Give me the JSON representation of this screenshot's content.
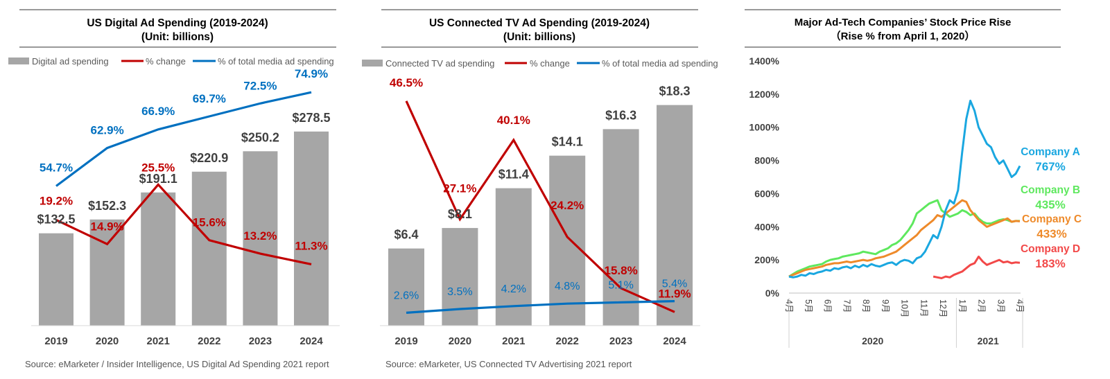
{
  "colors": {
    "bar": "#a6a6a6",
    "red": "#c00000",
    "blue": "#0070c0",
    "company_a": "#1aa7e0",
    "company_b": "#5ee85e",
    "company_c": "#ee8a2a",
    "company_d": "#f24848"
  },
  "chart_data": [
    {
      "type": "bar",
      "title": "US Digital Ad Spending (2019-2024)",
      "subtitle": "(Unit: billions)",
      "legend": [
        "Digital ad spending",
        "% change",
        "% of total media ad spending"
      ],
      "legend_placement": "top",
      "categories": [
        "2019",
        "2020",
        "2021",
        "2022",
        "2023",
        "2024"
      ],
      "series": [
        {
          "name": "Digital ad spending",
          "kind": "bar",
          "values": [
            132.5,
            152.3,
            191.1,
            220.9,
            250.2,
            278.5
          ],
          "labels": [
            "$132.5",
            "$152.3",
            "$191.1",
            "$220.9",
            "$250.2",
            "$278.5"
          ]
        },
        {
          "name": "% change",
          "kind": "line",
          "values": [
            19.2,
            14.9,
            25.5,
            15.6,
            13.2,
            11.3
          ],
          "labels": [
            "19.2%",
            "14.9%",
            "25.5%",
            "15.6%",
            "13.2%",
            "11.3%"
          ]
        },
        {
          "name": "% of total media ad spending",
          "kind": "line",
          "values": [
            54.7,
            62.9,
            66.9,
            69.7,
            72.5,
            74.9
          ],
          "labels": [
            "54.7%",
            "62.9%",
            "66.9%",
            "69.7%",
            "72.5%",
            "74.9%"
          ]
        }
      ],
      "source": "Source: eMarketer / Insider Intelligence, US Digital Ad Spending 2021 report"
    },
    {
      "type": "bar",
      "title": "US Connected TV Ad Spending (2019-2024)",
      "subtitle": "(Unit: billions)",
      "legend": [
        "Connected TV ad spending",
        "% change",
        "% of total media ad spending"
      ],
      "legend_placement": "top",
      "categories": [
        "2019",
        "2020",
        "2021",
        "2022",
        "2023",
        "2024"
      ],
      "series": [
        {
          "name": "Connected TV ad spending",
          "kind": "bar",
          "values": [
            6.4,
            8.1,
            11.4,
            14.1,
            16.3,
            18.3
          ],
          "labels": [
            "$6.4",
            "$8.1",
            "$11.4",
            "$14.1",
            "$16.3",
            "$18.3"
          ]
        },
        {
          "name": "% change",
          "kind": "line",
          "values": [
            46.5,
            27.1,
            40.1,
            24.2,
            15.8,
            11.9
          ],
          "labels": [
            "46.5%",
            "27.1%",
            "40.1%",
            "24.2%",
            "15.8%",
            "11.9%"
          ]
        },
        {
          "name": "% of total media ad spending",
          "kind": "line",
          "values": [
            2.6,
            3.5,
            4.2,
            4.8,
            5.1,
            5.4
          ],
          "labels": [
            "2.6%",
            "3.5%",
            "4.2%",
            "4.8%",
            "5.1%",
            "5.4%"
          ]
        }
      ],
      "source": "Source: eMarketer, US Connected TV Advertising 2021 report"
    },
    {
      "type": "line",
      "title": "Major Ad-Tech Companies’ Stock Price Rise",
      "subtitle": "（Rise % from April 1, 2020）",
      "ylim": [
        0,
        1400
      ],
      "yticks": [
        "0%",
        "200%",
        "400%",
        "600%",
        "800%",
        "1000%",
        "1200%",
        "1400%"
      ],
      "x_month_labels": [
        "4月",
        "5月",
        "6月",
        "7月",
        "8月",
        "9月",
        "10月",
        "11月",
        "12月",
        "1月",
        "2月",
        "3月",
        "4月"
      ],
      "x_year_labels": [
        "2020",
        "2021"
      ],
      "grid": false,
      "series": [
        {
          "name": "Company A",
          "end_label": "767%",
          "values": [
            100,
            95,
            100,
            110,
            105,
            120,
            115,
            125,
            130,
            140,
            135,
            150,
            145,
            155,
            160,
            150,
            165,
            155,
            170,
            160,
            175,
            165,
            160,
            170,
            180,
            185,
            170,
            190,
            200,
            195,
            180,
            210,
            220,
            250,
            300,
            350,
            330,
            400,
            500,
            560,
            540,
            620,
            850,
            1050,
            1160,
            1100,
            1000,
            950,
            900,
            880,
            820,
            780,
            800,
            750,
            700,
            720,
            767
          ]
        },
        {
          "name": "Company B",
          "end_label": "435%",
          "values": [
            100,
            115,
            130,
            140,
            150,
            160,
            165,
            170,
            175,
            190,
            200,
            205,
            210,
            220,
            225,
            230,
            235,
            240,
            250,
            245,
            240,
            235,
            250,
            260,
            270,
            290,
            300,
            320,
            350,
            380,
            420,
            480,
            500,
            520,
            540,
            550,
            560,
            500,
            480,
            460,
            470,
            480,
            500,
            490,
            470,
            480,
            450,
            430,
            420,
            420,
            430,
            440,
            445,
            440,
            430,
            435,
            435
          ]
        },
        {
          "name": "Company C",
          "end_label": "433%",
          "values": [
            100,
            110,
            120,
            130,
            140,
            145,
            150,
            155,
            160,
            170,
            175,
            180,
            180,
            185,
            190,
            185,
            190,
            195,
            200,
            195,
            200,
            210,
            215,
            220,
            230,
            240,
            250,
            270,
            290,
            310,
            330,
            350,
            380,
            400,
            420,
            440,
            470,
            460,
            480,
            500,
            520,
            540,
            560,
            550,
            500,
            470,
            440,
            420,
            400,
            410,
            420,
            430,
            440,
            450,
            430,
            435,
            433
          ]
        },
        {
          "name": "Company D",
          "end_label": "183%",
          "values": [
            null,
            null,
            null,
            null,
            null,
            null,
            null,
            null,
            null,
            null,
            null,
            null,
            null,
            null,
            null,
            null,
            null,
            null,
            null,
            null,
            null,
            null,
            null,
            null,
            null,
            null,
            null,
            null,
            null,
            null,
            null,
            null,
            null,
            null,
            null,
            100,
            95,
            90,
            100,
            95,
            110,
            120,
            130,
            150,
            170,
            180,
            220,
            190,
            170,
            180,
            190,
            200,
            185,
            190,
            180,
            185,
            183
          ]
        }
      ]
    }
  ]
}
